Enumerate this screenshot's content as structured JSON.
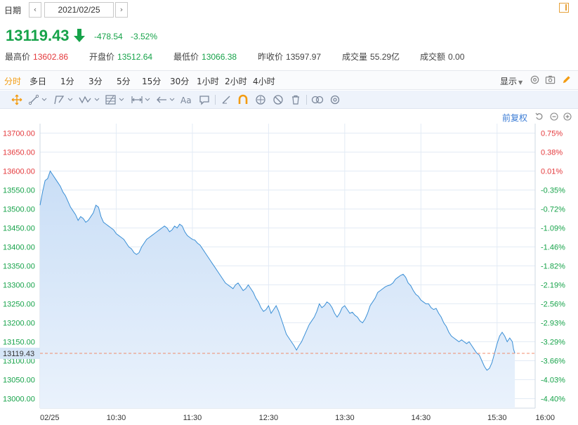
{
  "date_bar": {
    "label": "日期",
    "prev": "‹",
    "next": "›",
    "date": "2021/02/25"
  },
  "quote": {
    "price": "13119.43",
    "change": "-478.54",
    "change_pct": "-3.52%",
    "stats": [
      {
        "label": "最高价",
        "value": "13602.86",
        "color": "#e4393c"
      },
      {
        "label": "开盘价",
        "value": "13512.64",
        "color": "#17a34a"
      },
      {
        "label": "最低价",
        "value": "13066.38",
        "color": "#17a34a"
      },
      {
        "label": "昨收价",
        "value": "13597.97",
        "color": "#444444"
      },
      {
        "label": "成交量",
        "value": "55.29亿",
        "color": "#444444"
      },
      {
        "label": "成交额",
        "value": "0.00",
        "color": "#444444"
      }
    ]
  },
  "periods": {
    "tabs": [
      "分时",
      "多日",
      "1分",
      "3分",
      "5分",
      "15分",
      "30分",
      "1小时",
      "2小时",
      "4小时"
    ],
    "active_index": 0,
    "display_menu": "显示"
  },
  "toolbar": {
    "tools": [
      "move-crosshair",
      "line",
      "polyline",
      "wave",
      "fib-grid",
      "range-measure",
      "arrow",
      "text",
      "comment",
      "brush",
      "magnet",
      "eye",
      "hide",
      "trash",
      "link",
      "settings"
    ]
  },
  "chart_controls": {
    "adjust_label": "前复权"
  },
  "colors": {
    "up": "#e4393c",
    "down": "#17a34a",
    "accent": "#f39c12",
    "line": "#3a8fd6",
    "area_top": "#c9def6",
    "area_bottom": "#eaf2fc"
  },
  "chart_data": {
    "type": "area",
    "title": "",
    "xlabel": "",
    "ylabel": "",
    "ylim": [
      12975,
      13725
    ],
    "prev_close": 13597.97,
    "current_price": 13119.43,
    "current_price_label": "13119.43",
    "y_ticks": [
      13700,
      13650,
      13600,
      13550,
      13500,
      13450,
      13400,
      13350,
      13300,
      13250,
      13200,
      13150,
      13100,
      13050,
      13000
    ],
    "y_tick_labels": [
      "13700.00",
      "13650.00",
      "13600.00",
      "13550.00",
      "13500.00",
      "13450.00",
      "13400.00",
      "13350.00",
      "13300.00",
      "13250.00",
      "13200.00",
      "13150.00",
      "13100.00",
      "13050.00",
      "13000.00"
    ],
    "right_tick_labels": [
      "0.75%",
      "0.38%",
      "0.01%",
      "-0.35%",
      "-0.72%",
      "-1.09%",
      "-1.46%",
      "-1.82%",
      "-2.19%",
      "-2.56%",
      "-2.93%",
      "-3.29%",
      "-3.66%",
      "-4.03%",
      "-4.40%"
    ],
    "x_ticks": [
      "02/25",
      "10:30",
      "11:30",
      "12:30",
      "13:30",
      "14:30",
      "15:30",
      "16:00"
    ],
    "x_tick_minutes": [
      0,
      60,
      120,
      180,
      240,
      300,
      360,
      390
    ],
    "series": [
      {
        "points": [
          [
            0,
            13510
          ],
          [
            2,
            13545
          ],
          [
            4,
            13575
          ],
          [
            6,
            13580
          ],
          [
            8,
            13600
          ],
          [
            10,
            13590
          ],
          [
            12,
            13580
          ],
          [
            14,
            13570
          ],
          [
            16,
            13560
          ],
          [
            18,
            13545
          ],
          [
            20,
            13535
          ],
          [
            22,
            13520
          ],
          [
            24,
            13505
          ],
          [
            26,
            13495
          ],
          [
            28,
            13485
          ],
          [
            30,
            13470
          ],
          [
            32,
            13480
          ],
          [
            34,
            13475
          ],
          [
            36,
            13465
          ],
          [
            38,
            13470
          ],
          [
            40,
            13480
          ],
          [
            42,
            13490
          ],
          [
            44,
            13510
          ],
          [
            46,
            13505
          ],
          [
            48,
            13480
          ],
          [
            50,
            13465
          ],
          [
            52,
            13460
          ],
          [
            54,
            13455
          ],
          [
            56,
            13450
          ],
          [
            58,
            13445
          ],
          [
            60,
            13435
          ],
          [
            62,
            13430
          ],
          [
            64,
            13425
          ],
          [
            66,
            13420
          ],
          [
            68,
            13410
          ],
          [
            70,
            13400
          ],
          [
            72,
            13395
          ],
          [
            74,
            13385
          ],
          [
            76,
            13380
          ],
          [
            78,
            13385
          ],
          [
            80,
            13400
          ],
          [
            82,
            13410
          ],
          [
            84,
            13420
          ],
          [
            86,
            13425
          ],
          [
            88,
            13430
          ],
          [
            90,
            13435
          ],
          [
            92,
            13440
          ],
          [
            94,
            13445
          ],
          [
            96,
            13450
          ],
          [
            98,
            13455
          ],
          [
            100,
            13450
          ],
          [
            102,
            13440
          ],
          [
            104,
            13445
          ],
          [
            106,
            13455
          ],
          [
            108,
            13450
          ],
          [
            110,
            13460
          ],
          [
            112,
            13455
          ],
          [
            114,
            13440
          ],
          [
            116,
            13430
          ],
          [
            118,
            13425
          ],
          [
            120,
            13420
          ],
          [
            122,
            13418
          ],
          [
            124,
            13410
          ],
          [
            126,
            13405
          ],
          [
            128,
            13395
          ],
          [
            130,
            13385
          ],
          [
            132,
            13375
          ],
          [
            134,
            13365
          ],
          [
            136,
            13355
          ],
          [
            138,
            13345
          ],
          [
            140,
            13335
          ],
          [
            142,
            13325
          ],
          [
            144,
            13315
          ],
          [
            146,
            13305
          ],
          [
            148,
            13300
          ],
          [
            150,
            13295
          ],
          [
            152,
            13290
          ],
          [
            154,
            13300
          ],
          [
            156,
            13305
          ],
          [
            158,
            13295
          ],
          [
            160,
            13285
          ],
          [
            162,
            13290
          ],
          [
            164,
            13300
          ],
          [
            166,
            13290
          ],
          [
            168,
            13280
          ],
          [
            170,
            13265
          ],
          [
            172,
            13255
          ],
          [
            174,
            13240
          ],
          [
            176,
            13230
          ],
          [
            178,
            13235
          ],
          [
            180,
            13245
          ],
          [
            182,
            13225
          ],
          [
            184,
            13235
          ],
          [
            186,
            13245
          ],
          [
            188,
            13230
          ],
          [
            190,
            13210
          ],
          [
            192,
            13190
          ],
          [
            194,
            13170
          ],
          [
            196,
            13160
          ],
          [
            198,
            13150
          ],
          [
            200,
            13140
          ],
          [
            202,
            13128
          ],
          [
            204,
            13140
          ],
          [
            206,
            13150
          ],
          [
            208,
            13165
          ],
          [
            210,
            13180
          ],
          [
            212,
            13195
          ],
          [
            214,
            13205
          ],
          [
            216,
            13215
          ],
          [
            218,
            13230
          ],
          [
            220,
            13250
          ],
          [
            222,
            13240
          ],
          [
            224,
            13245
          ],
          [
            226,
            13255
          ],
          [
            228,
            13250
          ],
          [
            230,
            13240
          ],
          [
            232,
            13225
          ],
          [
            234,
            13215
          ],
          [
            236,
            13225
          ],
          [
            238,
            13240
          ],
          [
            240,
            13245
          ],
          [
            242,
            13235
          ],
          [
            244,
            13225
          ],
          [
            246,
            13228
          ],
          [
            248,
            13220
          ],
          [
            250,
            13215
          ],
          [
            252,
            13205
          ],
          [
            254,
            13200
          ],
          [
            256,
            13210
          ],
          [
            258,
            13225
          ],
          [
            260,
            13245
          ],
          [
            262,
            13255
          ],
          [
            264,
            13265
          ],
          [
            266,
            13280
          ],
          [
            268,
            13285
          ],
          [
            270,
            13290
          ],
          [
            272,
            13295
          ],
          [
            274,
            13298
          ],
          [
            276,
            13300
          ],
          [
            278,
            13305
          ],
          [
            280,
            13315
          ],
          [
            282,
            13320
          ],
          [
            284,
            13325
          ],
          [
            286,
            13328
          ],
          [
            288,
            13320
          ],
          [
            290,
            13305
          ],
          [
            292,
            13298
          ],
          [
            294,
            13285
          ],
          [
            296,
            13275
          ],
          [
            298,
            13270
          ],
          [
            300,
            13260
          ],
          [
            302,
            13255
          ],
          [
            304,
            13250
          ],
          [
            306,
            13250
          ],
          [
            308,
            13240
          ],
          [
            310,
            13235
          ],
          [
            312,
            13238
          ],
          [
            314,
            13225
          ],
          [
            316,
            13215
          ],
          [
            318,
            13200
          ],
          [
            320,
            13190
          ],
          [
            322,
            13175
          ],
          [
            324,
            13165
          ],
          [
            326,
            13160
          ],
          [
            328,
            13155
          ],
          [
            330,
            13150
          ],
          [
            332,
            13155
          ],
          [
            334,
            13150
          ],
          [
            336,
            13145
          ],
          [
            338,
            13150
          ],
          [
            340,
            13140
          ],
          [
            342,
            13130
          ],
          [
            344,
            13120
          ],
          [
            346,
            13115
          ],
          [
            348,
            13100
          ],
          [
            350,
            13085
          ],
          [
            352,
            13075
          ],
          [
            354,
            13080
          ],
          [
            356,
            13095
          ],
          [
            358,
            13120
          ],
          [
            360,
            13145
          ],
          [
            362,
            13165
          ],
          [
            364,
            13175
          ],
          [
            366,
            13165
          ],
          [
            368,
            13150
          ],
          [
            370,
            13160
          ],
          [
            372,
            13150
          ],
          [
            373,
            13130
          ],
          [
            374,
            13119.43
          ]
        ]
      }
    ],
    "grid": true,
    "legend": "none"
  }
}
